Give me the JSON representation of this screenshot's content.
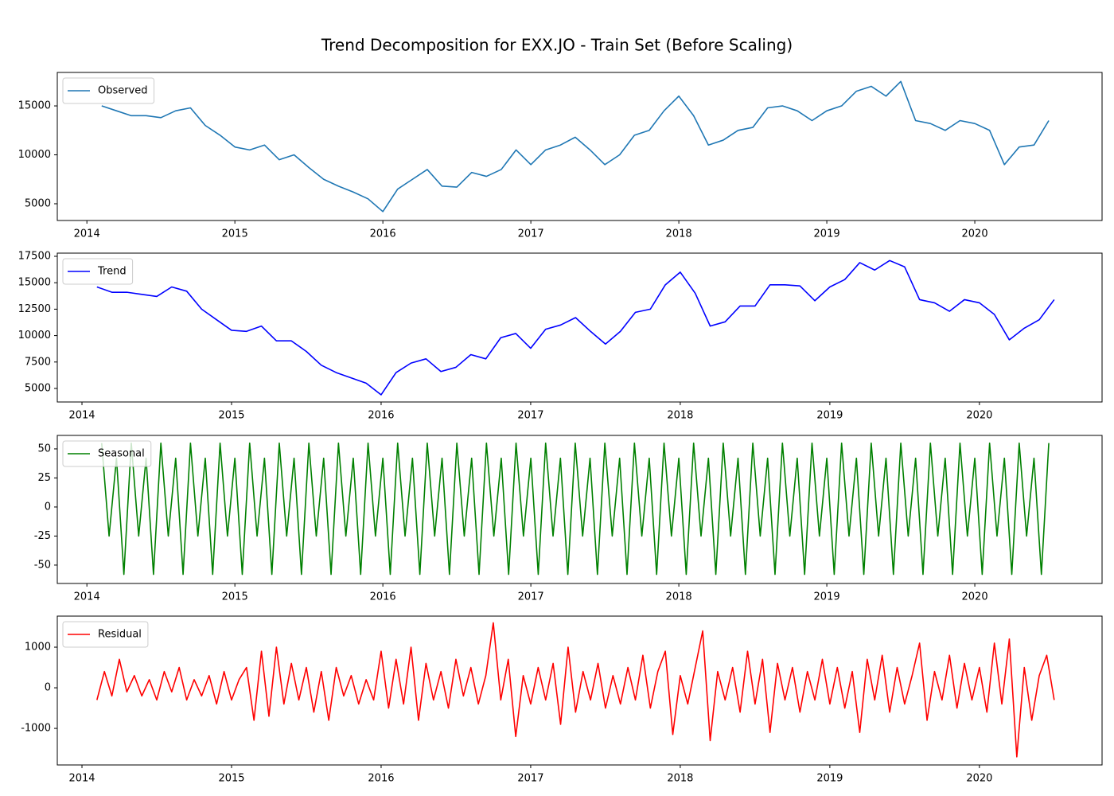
{
  "title": "Trend Decomposition for EXX.JO - Train Set (Before Scaling)",
  "chart_data": [
    {
      "type": "line",
      "legend": "upper left",
      "x": [
        2014.1,
        2014.2,
        2014.3,
        2014.4,
        2014.5,
        2014.6,
        2014.7,
        2014.8,
        2014.9,
        2015.0,
        2015.1,
        2015.2,
        2015.3,
        2015.4,
        2015.5,
        2015.6,
        2015.7,
        2015.8,
        2015.9,
        2016.0,
        2016.1,
        2016.2,
        2016.3,
        2016.4,
        2016.5,
        2016.6,
        2016.7,
        2016.8,
        2016.9,
        2017.0,
        2017.1,
        2017.2,
        2017.3,
        2017.4,
        2017.5,
        2017.6,
        2017.7,
        2017.8,
        2017.9,
        2018.0,
        2018.1,
        2018.2,
        2018.3,
        2018.4,
        2018.5,
        2018.6,
        2018.7,
        2018.8,
        2018.9,
        2019.0,
        2019.1,
        2019.2,
        2019.3,
        2019.4,
        2019.5,
        2019.6,
        2019.7,
        2019.8,
        2019.9,
        2020.0,
        2020.1,
        2020.2,
        2020.3,
        2020.4,
        2020.5
      ],
      "series": [
        {
          "name": "Observed",
          "color": "#1f77b4",
          "values": [
            15000,
            14500,
            14000,
            14000,
            13800,
            14500,
            14800,
            13000,
            12000,
            10800,
            10500,
            11000,
            9500,
            10000,
            8700,
            7500,
            6800,
            6200,
            5500,
            4200,
            6500,
            7500,
            8500,
            6800,
            6700,
            8200,
            7800,
            8500,
            10500,
            9000,
            10500,
            11000,
            11800,
            10500,
            9000,
            10000,
            12000,
            12500,
            14500,
            16000,
            14000,
            11000,
            11500,
            12500,
            12800,
            14800,
            15000,
            14500,
            13500,
            14500,
            15000,
            16500,
            17000,
            16000,
            17500,
            13500,
            13200,
            12500,
            13500,
            13200,
            12500,
            9000,
            10800,
            11000,
            13500
          ]
        }
      ],
      "xlim": [
        2013.8,
        2020.86
      ],
      "xticks": [
        2014,
        2015,
        2016,
        2017,
        2018,
        2019,
        2020
      ],
      "ylim": [
        3290,
        18420
      ],
      "yticks": [
        5000,
        10000,
        15000
      ]
    },
    {
      "type": "line",
      "legend": "upper left",
      "x": [
        2014.1,
        2014.2,
        2014.3,
        2014.4,
        2014.5,
        2014.6,
        2014.7,
        2014.8,
        2014.9,
        2015.0,
        2015.1,
        2015.2,
        2015.3,
        2015.4,
        2015.5,
        2015.6,
        2015.7,
        2015.8,
        2015.9,
        2016.0,
        2016.1,
        2016.2,
        2016.3,
        2016.4,
        2016.5,
        2016.6,
        2016.7,
        2016.8,
        2016.9,
        2017.0,
        2017.1,
        2017.2,
        2017.3,
        2017.4,
        2017.5,
        2017.6,
        2017.7,
        2017.8,
        2017.9,
        2018.0,
        2018.1,
        2018.2,
        2018.3,
        2018.4,
        2018.5,
        2018.6,
        2018.7,
        2018.8,
        2018.9,
        2019.0,
        2019.1,
        2019.2,
        2019.3,
        2019.4,
        2019.5,
        2019.6,
        2019.7,
        2019.8,
        2019.9,
        2020.0,
        2020.1,
        2020.2,
        2020.3,
        2020.4,
        2020.5
      ],
      "series": [
        {
          "name": "Trend",
          "color": "#0000ff",
          "values": [
            14600,
            14100,
            14100,
            13900,
            13700,
            14600,
            14200,
            12500,
            11500,
            10500,
            10400,
            10900,
            9500,
            9500,
            8500,
            7200,
            6500,
            6000,
            5500,
            4400,
            6500,
            7400,
            7800,
            6600,
            7000,
            8200,
            7800,
            9800,
            10200,
            8800,
            10600,
            11000,
            11700,
            10400,
            9200,
            10400,
            12200,
            12500,
            14800,
            16000,
            14000,
            10900,
            11300,
            12800,
            12800,
            14800,
            14800,
            14700,
            13300,
            14600,
            15300,
            16900,
            16200,
            17100,
            16500,
            13400,
            13100,
            12300,
            13400,
            13100,
            12000,
            9600,
            10700,
            11500,
            13400
          ]
        }
      ],
      "xlim": [
        2013.835,
        2020.82
      ],
      "xticks": [
        2014,
        2015,
        2016,
        2017,
        2018,
        2019,
        2020
      ],
      "ylim": [
        3720,
        17800
      ],
      "yticks": [
        5000,
        7500,
        10000,
        12500,
        15000,
        17500
      ]
    },
    {
      "type": "line",
      "legend": "upper left",
      "x": [
        2014.1,
        2014.15,
        2014.2,
        2014.25,
        2014.3,
        2014.35,
        2014.4,
        2014.45,
        2014.5,
        2014.55,
        2014.6,
        2014.65,
        2014.7,
        2014.75,
        2014.8,
        2014.85,
        2014.9,
        2014.95,
        2015.0,
        2015.05,
        2015.1,
        2015.15,
        2015.2,
        2015.25,
        2015.3,
        2015.35,
        2015.4,
        2015.45,
        2015.5,
        2015.55,
        2015.6,
        2015.65,
        2015.7,
        2015.75,
        2015.8,
        2015.85,
        2015.9,
        2015.95,
        2016.0,
        2016.05,
        2016.1,
        2016.15,
        2016.2,
        2016.25,
        2016.3,
        2016.35,
        2016.4,
        2016.45,
        2016.5,
        2016.55,
        2016.6,
        2016.65,
        2016.7,
        2016.75,
        2016.8,
        2016.85,
        2016.9,
        2016.95,
        2017.0,
        2017.05,
        2017.1,
        2017.15,
        2017.2,
        2017.25,
        2017.3,
        2017.35,
        2017.4,
        2017.45,
        2017.5,
        2017.55,
        2017.6,
        2017.65,
        2017.7,
        2017.75,
        2017.8,
        2017.85,
        2017.9,
        2017.95,
        2018.0,
        2018.05,
        2018.1,
        2018.15,
        2018.2,
        2018.25,
        2018.3,
        2018.35,
        2018.4,
        2018.45,
        2018.5,
        2018.55,
        2018.6,
        2018.65,
        2018.7,
        2018.75,
        2018.8,
        2018.85,
        2018.9,
        2018.95,
        2019.0,
        2019.05,
        2019.1,
        2019.15,
        2019.2,
        2019.25,
        2019.3,
        2019.35,
        2019.4,
        2019.45,
        2019.5,
        2019.55,
        2019.6,
        2019.65,
        2019.7,
        2019.75,
        2019.8,
        2019.85,
        2019.9,
        2019.95,
        2020.0,
        2020.05,
        2020.1,
        2020.15,
        2020.2,
        2020.25,
        2020.3,
        2020.35,
        2020.4,
        2020.45,
        2020.5
      ],
      "series": [
        {
          "name": "Seasonal",
          "color": "#008000",
          "values": [
            55,
            -25,
            42,
            -58,
            55,
            -25,
            42,
            -58,
            55,
            -25,
            42,
            -58,
            55,
            -25,
            42,
            -58,
            55,
            -25,
            42,
            -58,
            55,
            -25,
            42,
            -58,
            55,
            -25,
            42,
            -58,
            55,
            -25,
            42,
            -58,
            55,
            -25,
            42,
            -58,
            55,
            -25,
            42,
            -58,
            55,
            -25,
            42,
            -58,
            55,
            -25,
            42,
            -58,
            55,
            -25,
            42,
            -58,
            55,
            -25,
            42,
            -58,
            55,
            -25,
            42,
            -58,
            55,
            -25,
            42,
            -58,
            55,
            -25,
            42,
            -58,
            55,
            -25,
            42,
            -58,
            55,
            -25,
            42,
            -58,
            55,
            -25,
            42,
            -58,
            55,
            -25,
            42,
            -58,
            55,
            -25,
            42,
            -58,
            55,
            -25,
            42,
            -58,
            55,
            -25,
            42,
            -58,
            55,
            -25,
            42,
            -58,
            55,
            -25,
            42,
            -58,
            55,
            -25,
            42,
            -58,
            55,
            -25,
            42,
            -58,
            55,
            -25,
            42,
            -58,
            55,
            -25,
            42,
            -58,
            55,
            -25,
            42,
            -58,
            55,
            -25,
            42,
            -58,
            55
          ]
        }
      ],
      "xlim": [
        2013.8,
        2020.86
      ],
      "xticks": [
        2014,
        2015,
        2016,
        2017,
        2018,
        2019,
        2020
      ],
      "ylim": [
        -65.8,
        61.6
      ],
      "yticks": [
        -50,
        -25,
        0,
        25,
        50
      ]
    },
    {
      "type": "line",
      "legend": "upper left",
      "x": [
        2014.1,
        2014.15,
        2014.2,
        2014.25,
        2014.3,
        2014.35,
        2014.4,
        2014.45,
        2014.5,
        2014.55,
        2014.6,
        2014.65,
        2014.7,
        2014.75,
        2014.8,
        2014.85,
        2014.9,
        2014.95,
        2015.0,
        2015.05,
        2015.1,
        2015.15,
        2015.2,
        2015.25,
        2015.3,
        2015.35,
        2015.4,
        2015.45,
        2015.5,
        2015.55,
        2015.6,
        2015.65,
        2015.7,
        2015.75,
        2015.8,
        2015.85,
        2015.9,
        2015.95,
        2016.0,
        2016.05,
        2016.1,
        2016.15,
        2016.2,
        2016.25,
        2016.3,
        2016.35,
        2016.4,
        2016.45,
        2016.5,
        2016.55,
        2016.6,
        2016.65,
        2016.7,
        2016.75,
        2016.8,
        2016.85,
        2016.9,
        2016.95,
        2017.0,
        2017.05,
        2017.1,
        2017.15,
        2017.2,
        2017.25,
        2017.3,
        2017.35,
        2017.4,
        2017.45,
        2017.5,
        2017.55,
        2017.6,
        2017.65,
        2017.7,
        2017.75,
        2017.8,
        2017.85,
        2017.9,
        2017.95,
        2018.0,
        2018.05,
        2018.1,
        2018.15,
        2018.2,
        2018.25,
        2018.3,
        2018.35,
        2018.4,
        2018.45,
        2018.5,
        2018.55,
        2018.6,
        2018.65,
        2018.7,
        2018.75,
        2018.8,
        2018.85,
        2018.9,
        2018.95,
        2019.0,
        2019.05,
        2019.1,
        2019.15,
        2019.2,
        2019.25,
        2019.3,
        2019.35,
        2019.4,
        2019.45,
        2019.5,
        2019.55,
        2019.6,
        2019.65,
        2019.7,
        2019.75,
        2019.8,
        2019.85,
        2019.9,
        2019.95,
        2020.0,
        2020.05,
        2020.1,
        2020.15,
        2020.2,
        2020.25,
        2020.3,
        2020.35,
        2020.4,
        2020.45,
        2020.5
      ],
      "series": [
        {
          "name": "Residual",
          "color": "#ff0000",
          "values": [
            -300,
            400,
            -200,
            700,
            -100,
            300,
            -200,
            200,
            -300,
            400,
            -100,
            500,
            -300,
            200,
            -200,
            300,
            -400,
            400,
            -300,
            200,
            500,
            -800,
            900,
            -700,
            1000,
            -400,
            600,
            -300,
            500,
            -600,
            400,
            -800,
            500,
            -200,
            300,
            -400,
            200,
            -300,
            900,
            -500,
            700,
            -400,
            1000,
            -800,
            600,
            -300,
            400,
            -500,
            700,
            -200,
            500,
            -400,
            300,
            1600,
            -300,
            700,
            -1200,
            300,
            -400,
            500,
            -300,
            600,
            -900,
            1000,
            -600,
            400,
            -300,
            600,
            -500,
            300,
            -400,
            500,
            -300,
            800,
            -500,
            400,
            900,
            -1150,
            300,
            -400,
            500,
            1400,
            -1300,
            400,
            -300,
            500,
            -600,
            900,
            -400,
            700,
            -1100,
            600,
            -300,
            500,
            -600,
            400,
            -300,
            700,
            -400,
            500,
            -500,
            400,
            -1100,
            700,
            -300,
            800,
            -600,
            500,
            -400,
            300,
            1100,
            -800,
            400,
            -300,
            800,
            -500,
            600,
            -300,
            500,
            -600,
            1100,
            -400,
            1200,
            -1700,
            500,
            -800,
            300,
            800,
            -300
          ]
        }
      ],
      "xlim": [
        2013.835,
        2020.82
      ],
      "xticks": [
        2014,
        2015,
        2016,
        2017,
        2018,
        2019,
        2020
      ],
      "ylim": [
        -1900,
        1765
      ],
      "yticks": [
        -1000,
        0,
        1000
      ]
    }
  ]
}
